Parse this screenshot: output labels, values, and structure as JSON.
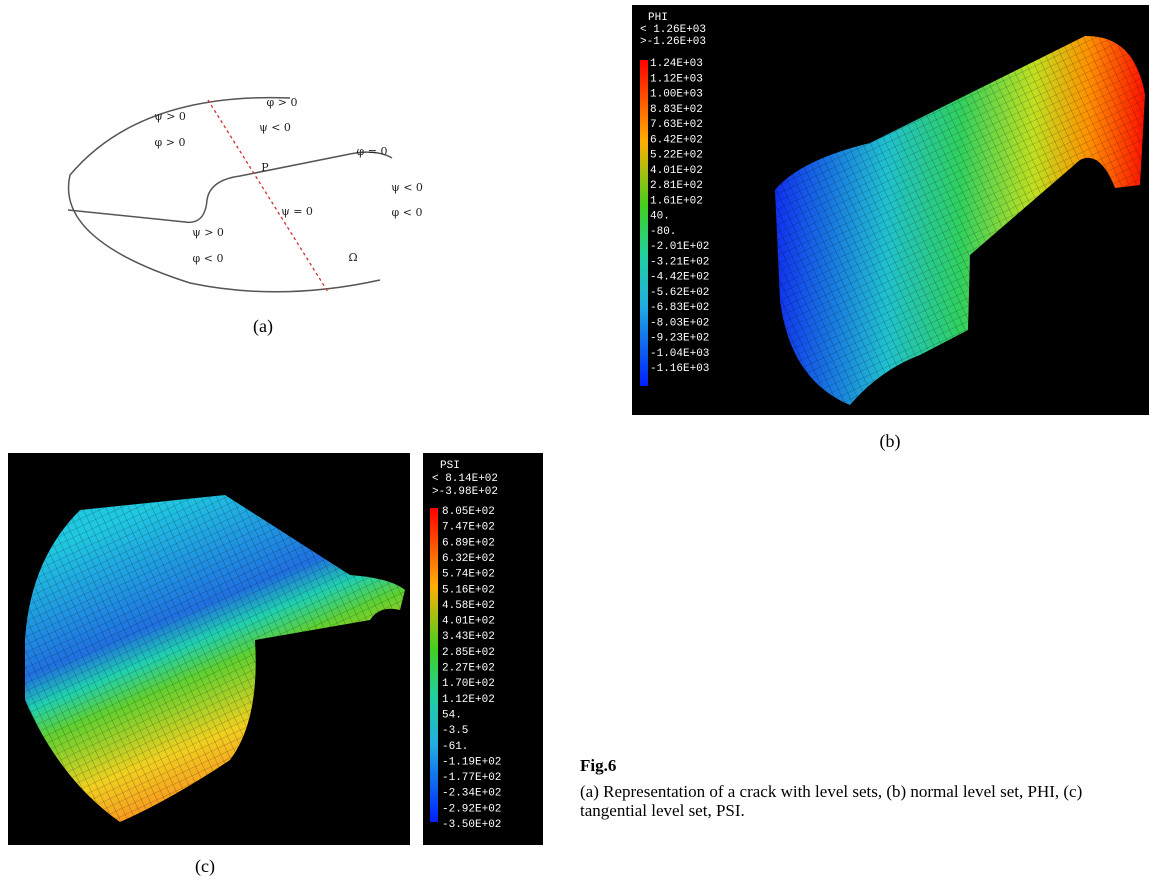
{
  "panel_a": {
    "labels": [
      "ψ > 0",
      "φ > 0",
      "φ > 0",
      "ψ < 0",
      "φ = 0",
      "P",
      "ψ < 0",
      "φ < 0",
      "ψ = 0",
      "ψ > 0",
      "φ < 0",
      "Ω"
    ],
    "caption": "(a)"
  },
  "panel_b": {
    "title": "PHI",
    "max": "< 1.26E+03",
    "min": ">-1.26E+03",
    "scale": [
      "1.24E+03",
      "1.12E+03",
      "1.00E+03",
      "8.83E+02",
      "7.63E+02",
      "6.42E+02",
      "5.22E+02",
      "4.01E+02",
      "2.81E+02",
      "1.61E+02",
      "40.",
      "-80.",
      "-2.01E+02",
      "-3.21E+02",
      "-4.42E+02",
      "-5.62E+02",
      "-6.83E+02",
      "-8.03E+02",
      "-9.23E+02",
      "-1.04E+03",
      "-1.16E+03"
    ],
    "caption": "(b)"
  },
  "panel_c": {
    "title": "PSI",
    "max": "< 8.14E+02",
    "min": ">-3.98E+02",
    "scale": [
      "8.05E+02",
      "7.47E+02",
      "6.89E+02",
      "6.32E+02",
      "5.74E+02",
      "5.16E+02",
      "4.58E+02",
      "4.01E+02",
      "3.43E+02",
      "2.85E+02",
      "2.27E+02",
      "1.70E+02",
      "1.12E+02",
      "54.",
      "-3.5",
      "-61.",
      "-1.19E+02",
      "-1.77E+02",
      "-2.34E+02",
      "-2.92E+02",
      "-3.50E+02"
    ],
    "caption": "(c)"
  },
  "figure": {
    "label": "Fig.6",
    "caption": "(a) Representation of a crack with level sets, (b) normal level set, PHI, (c) tangential level set, PSI."
  }
}
